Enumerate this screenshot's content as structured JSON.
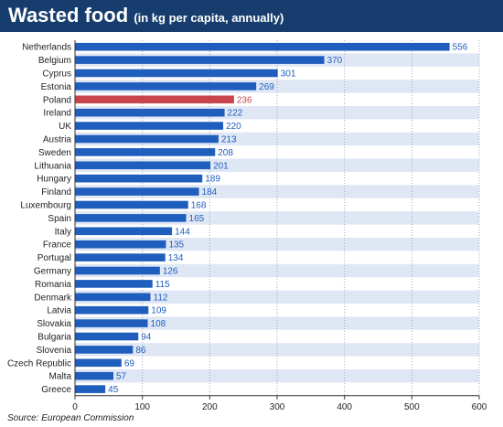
{
  "header": {
    "title": "Wasted food",
    "subtitle": "(in kg per capita, annually)"
  },
  "source": "Source: European Commission",
  "colors": {
    "header_bg": "#173d6e",
    "bar": "#1f5ebd",
    "highlight_bar": "#c9454b",
    "value_label": "#1f5ebd",
    "highlight_label": "#c9454b",
    "stripe": "#dfe7f5"
  },
  "chart_data": {
    "type": "bar",
    "orientation": "horizontal",
    "categories": [
      "Netherlands",
      "Belgium",
      "Cyprus",
      "Estonia",
      "Poland",
      "Ireland",
      "UK",
      "Austria",
      "Sweden",
      "Lithuania",
      "Hungary",
      "Finland",
      "Luxembourg",
      "Spain",
      "Italy",
      "France",
      "Portugal",
      "Germany",
      "Romania",
      "Denmark",
      "Latvia",
      "Slovakia",
      "Bulgaria",
      "Slovenia",
      "Czech Republic",
      "Malta",
      "Greece"
    ],
    "values": [
      556,
      370,
      301,
      269,
      236,
      222,
      220,
      213,
      208,
      201,
      189,
      184,
      168,
      165,
      144,
      135,
      134,
      126,
      115,
      112,
      109,
      108,
      94,
      86,
      69,
      57,
      45
    ],
    "highlight": "Poland",
    "title": "Wasted food",
    "subtitle": "(in kg per capita, annually)",
    "xlim": [
      0,
      600
    ],
    "xticks": [
      0,
      100,
      200,
      300,
      400,
      500,
      600
    ],
    "grid": "vertical dotted",
    "data_labels": true,
    "legend": "none"
  }
}
